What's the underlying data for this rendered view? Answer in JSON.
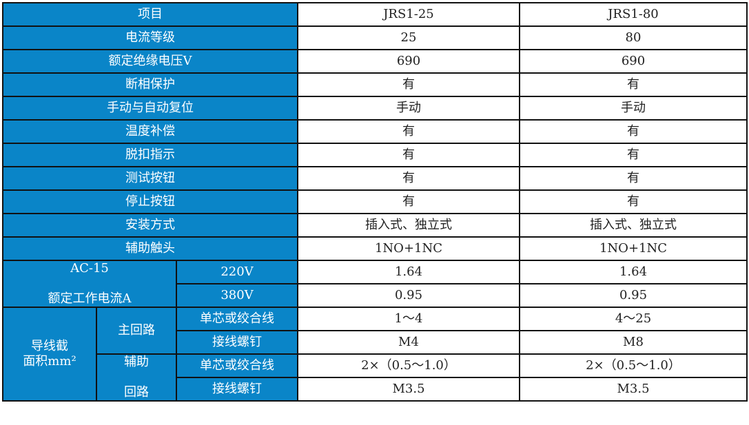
{
  "header": {
    "item": "项目",
    "models": [
      "JRS1-25",
      "JRS1-80"
    ]
  },
  "rows": [
    {
      "label": "电流等级",
      "values": [
        "25",
        "80"
      ]
    },
    {
      "label": "额定绝缘电压V",
      "values": [
        "690",
        "690"
      ]
    },
    {
      "label": "断相保护",
      "values": [
        "有",
        "有"
      ]
    },
    {
      "label": "手动与自动复位",
      "values": [
        "手动",
        "手动"
      ]
    },
    {
      "label": "温度补偿",
      "values": [
        "有",
        "有"
      ]
    },
    {
      "label": "脱扣指示",
      "values": [
        "有",
        "有"
      ]
    },
    {
      "label": "测试按钮",
      "values": [
        "有",
        "有"
      ]
    },
    {
      "label": "停止按钮",
      "values": [
        "有",
        "有"
      ]
    },
    {
      "label": "安装方式",
      "values": [
        "插入式、独立式",
        "插入式、独立式"
      ]
    },
    {
      "label": "辅助触头",
      "values": [
        "1NO+1NC",
        "1NO+1NC"
      ]
    }
  ],
  "ac15": {
    "label_line1": "AC-15",
    "label_line2": "额定工作电流A",
    "rows": [
      {
        "voltage": "220V",
        "values": [
          "1.64",
          "1.64"
        ]
      },
      {
        "voltage": "380V",
        "values": [
          "0.95",
          "0.95"
        ]
      }
    ]
  },
  "wire": {
    "label_line1": "导线截",
    "label_line2": "面积mm²",
    "main": {
      "label": "主回路",
      "rows": [
        {
          "label": "单芯或绞合线",
          "values": [
            "1～4",
            "4～25"
          ]
        },
        {
          "label": "接线螺钉",
          "values": [
            "M4",
            "M8"
          ]
        }
      ]
    },
    "aux": {
      "label_line1": "辅助",
      "label_line2": "回路",
      "rows": [
        {
          "label": "单芯或绞合线",
          "values": [
            "2×（0.5～1.0）",
            "2×（0.5～1.0）"
          ]
        },
        {
          "label": "接线螺钉",
          "values": [
            "M3.5",
            "M3.5"
          ]
        }
      ]
    }
  }
}
